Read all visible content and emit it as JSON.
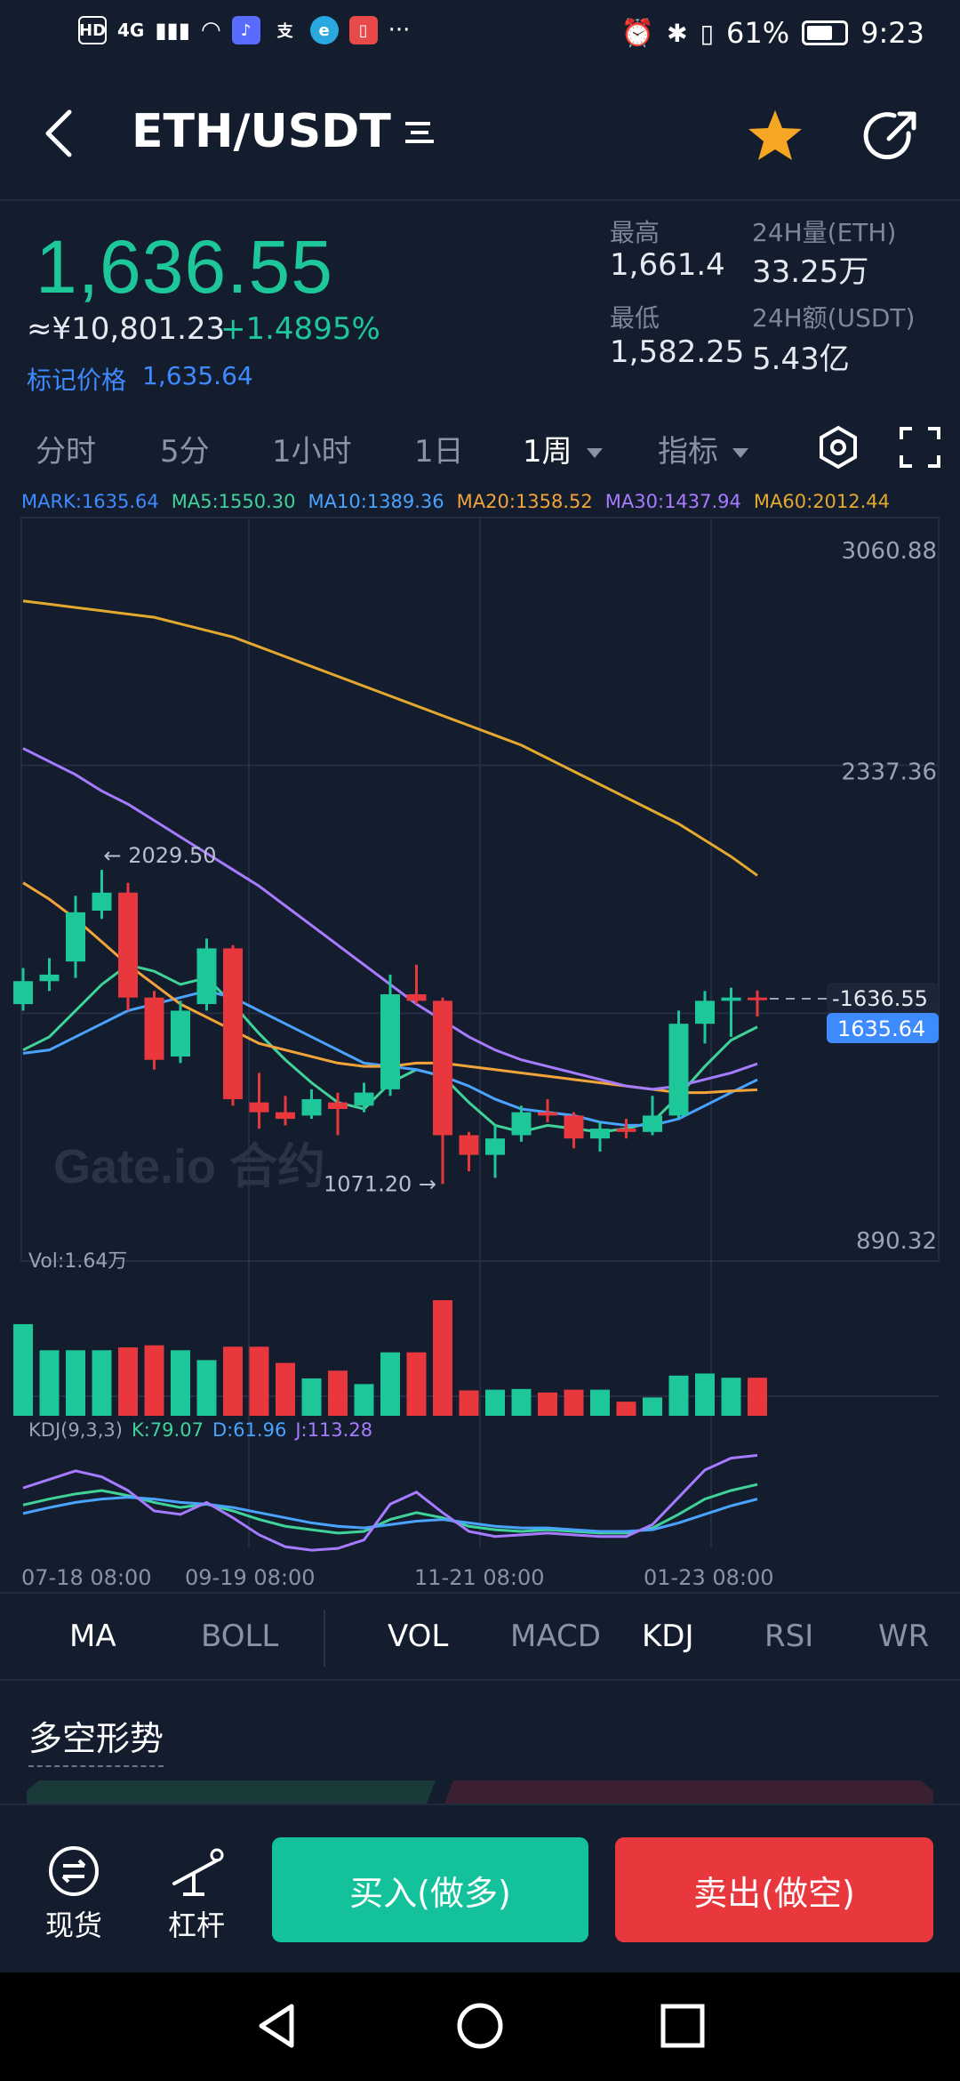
{
  "status_bar": {
    "network": "4G",
    "hd": "HD",
    "battery": "61%",
    "time": "9:23",
    "more": "···"
  },
  "header": {
    "pair": "ETH/USDT"
  },
  "ticker": {
    "last_price": "1,636.55",
    "cny_price": "≈¥10,801.23",
    "change": "+1.4895%",
    "mark_label": "标记价格",
    "mark_price": "1,635.64",
    "high_label": "最高",
    "high": "1,661.4",
    "low_label": "最低",
    "low": "1,582.25",
    "vol_label": "24H量(ETH)",
    "vol": "33.25万",
    "amount_label": "24H额(USDT)",
    "amount": "5.43亿"
  },
  "period_tabs": [
    "分时",
    "5分",
    "1小时",
    "1日",
    "1周",
    "指标"
  ],
  "ma_legend": [
    {
      "text": "MARK:1635.64",
      "color": "#3d8bff"
    },
    {
      "text": "MA5:1550.30",
      "color": "#3fd39a"
    },
    {
      "text": "MA10:1389.36",
      "color": "#4aa3ff"
    },
    {
      "text": "MA20:1358.52",
      "color": "#f2a33a"
    },
    {
      "text": "MA30:1437.94",
      "color": "#a77bff"
    },
    {
      "text": "MA60:2012.44",
      "color": "#e3a92e"
    }
  ],
  "chart_data": {
    "type": "candlestick",
    "y_axis_labels": [
      "3060.88",
      "2337.36",
      "890.32"
    ],
    "ylim": [
      890.32,
      3060.88
    ],
    "last_price_tag": "1636.55",
    "mark_price_tag": "1635.64",
    "high_annotation": "← 2029.50",
    "low_annotation": "1071.20 →",
    "candles": [
      {
        "o": 1620,
        "c": 1690,
        "h": 1730,
        "l": 1600
      },
      {
        "o": 1690,
        "c": 1710,
        "h": 1760,
        "l": 1660
      },
      {
        "o": 1750,
        "c": 1900,
        "h": 1950,
        "l": 1700
      },
      {
        "o": 1905,
        "c": 1960,
        "h": 2029.5,
        "l": 1880
      },
      {
        "o": 1960,
        "c": 1640,
        "h": 1990,
        "l": 1600
      },
      {
        "o": 1640,
        "c": 1450,
        "h": 1660,
        "l": 1420
      },
      {
        "o": 1460,
        "c": 1600,
        "h": 1630,
        "l": 1440
      },
      {
        "o": 1620,
        "c": 1790,
        "h": 1820,
        "l": 1600
      },
      {
        "o": 1790,
        "c": 1330,
        "h": 1800,
        "l": 1310
      },
      {
        "o": 1320,
        "c": 1290,
        "h": 1410,
        "l": 1240
      },
      {
        "o": 1290,
        "c": 1270,
        "h": 1340,
        "l": 1250
      },
      {
        "o": 1280,
        "c": 1330,
        "h": 1360,
        "l": 1270
      },
      {
        "o": 1320,
        "c": 1300,
        "h": 1350,
        "l": 1220
      },
      {
        "o": 1310,
        "c": 1350,
        "h": 1380,
        "l": 1290
      },
      {
        "o": 1360,
        "c": 1650,
        "h": 1710,
        "l": 1340
      },
      {
        "o": 1650,
        "c": 1630,
        "h": 1740,
        "l": 1620
      },
      {
        "o": 1630,
        "c": 1220,
        "h": 1640,
        "l": 1071.2
      },
      {
        "o": 1220,
        "c": 1160,
        "h": 1230,
        "l": 1110
      },
      {
        "o": 1160,
        "c": 1210,
        "h": 1250,
        "l": 1090
      },
      {
        "o": 1220,
        "c": 1290,
        "h": 1310,
        "l": 1200
      },
      {
        "o": 1290,
        "c": 1280,
        "h": 1330,
        "l": 1260
      },
      {
        "o": 1280,
        "c": 1210,
        "h": 1290,
        "l": 1180
      },
      {
        "o": 1210,
        "c": 1240,
        "h": 1260,
        "l": 1170
      },
      {
        "o": 1240,
        "c": 1230,
        "h": 1270,
        "l": 1210
      },
      {
        "o": 1230,
        "c": 1280,
        "h": 1340,
        "l": 1220
      },
      {
        "o": 1280,
        "c": 1560,
        "h": 1600,
        "l": 1270
      },
      {
        "o": 1560,
        "c": 1630,
        "h": 1660,
        "l": 1500
      },
      {
        "o": 1630,
        "c": 1640,
        "h": 1670,
        "l": 1520
      },
      {
        "o": 1640,
        "c": 1636.55,
        "h": 1661.4,
        "l": 1582.25
      }
    ],
    "ma_series": [
      {
        "key": "MA5",
        "color": "#3fd39a",
        "values": [
          1480,
          1520,
          1600,
          1680,
          1740,
          1720,
          1680,
          1700,
          1620,
          1530,
          1450,
          1380,
          1320,
          1300,
          1380,
          1420,
          1400,
          1320,
          1250,
          1230,
          1250,
          1240,
          1230,
          1240,
          1260,
          1340,
          1430,
          1510,
          1550.3
        ]
      },
      {
        "key": "MA10",
        "color": "#4aa3ff",
        "values": [
          1470,
          1480,
          1520,
          1560,
          1600,
          1620,
          1640,
          1660,
          1640,
          1600,
          1560,
          1520,
          1480,
          1440,
          1430,
          1420,
          1400,
          1370,
          1330,
          1300,
          1290,
          1280,
          1260,
          1250,
          1250,
          1270,
          1310,
          1350,
          1389.36
        ]
      },
      {
        "key": "MA20",
        "color": "#f2a33a",
        "values": [
          1990,
          1940,
          1880,
          1810,
          1740,
          1680,
          1620,
          1580,
          1540,
          1500,
          1480,
          1460,
          1440,
          1430,
          1430,
          1440,
          1440,
          1430,
          1420,
          1410,
          1400,
          1390,
          1380,
          1370,
          1360,
          1350,
          1350,
          1355,
          1358.52
        ]
      },
      {
        "key": "MA30",
        "color": "#a77bff",
        "values": [
          2400,
          2360,
          2320,
          2270,
          2230,
          2180,
          2130,
          2080,
          2030,
          1980,
          1920,
          1860,
          1800,
          1740,
          1680,
          1620,
          1570,
          1520,
          1480,
          1450,
          1430,
          1410,
          1390,
          1370,
          1360,
          1370,
          1390,
          1410,
          1437.94
        ]
      },
      {
        "key": "MA60",
        "color": "#e3a92e",
        "values": [
          2850,
          2840,
          2830,
          2820,
          2810,
          2800,
          2780,
          2760,
          2740,
          2710,
          2680,
          2650,
          2620,
          2590,
          2560,
          2530,
          2500,
          2470,
          2440,
          2410,
          2370,
          2330,
          2290,
          2250,
          2210,
          2170,
          2120,
          2070,
          2012.44
        ]
      }
    ],
    "volume_label": "Vol:1.64万",
    "volumes": [
      1.3,
      0.93,
      0.93,
      0.93,
      0.97,
      1.0,
      0.93,
      0.79,
      0.98,
      0.98,
      0.75,
      0.53,
      0.64,
      0.45,
      0.9,
      0.9,
      1.64,
      0.36,
      0.37,
      0.38,
      0.33,
      0.37,
      0.37,
      0.2,
      0.26,
      0.57,
      0.6,
      0.54,
      0.54
    ],
    "kdj_label": "KDJ(9,3,3)",
    "kdj_values": {
      "K": "K:79.07",
      "D": "D:61.96",
      "J": "J:113.28"
    },
    "kdj_series": [
      {
        "key": "K",
        "color": "#3fd39a",
        "values": [
          55,
          62,
          68,
          72,
          66,
          58,
          52,
          56,
          48,
          38,
          30,
          26,
          22,
          24,
          38,
          46,
          40,
          30,
          26,
          24,
          26,
          24,
          22,
          22,
          28,
          44,
          62,
          72,
          79.07
        ]
      },
      {
        "key": "D",
        "color": "#4aa3ff",
        "values": [
          45,
          52,
          58,
          62,
          64,
          62,
          58,
          56,
          52,
          46,
          40,
          34,
          30,
          28,
          32,
          36,
          38,
          34,
          30,
          28,
          28,
          26,
          24,
          24,
          26,
          34,
          44,
          54,
          61.96
        ]
      },
      {
        "key": "J",
        "color": "#a77bff",
        "values": [
          75,
          85,
          95,
          88,
          72,
          48,
          44,
          58,
          40,
          20,
          6,
          2,
          4,
          14,
          56,
          70,
          46,
          24,
          18,
          20,
          22,
          20,
          18,
          18,
          32,
          64,
          96,
          110,
          113.28
        ]
      }
    ],
    "x_labels": [
      "07-18 08:00",
      "09-19 08:00",
      "11-21 08:00",
      "01-23 08:00"
    ],
    "watermark": "Gate.io 合约"
  },
  "indicator_tabs": [
    "MA",
    "BOLL",
    "VOL",
    "MACD",
    "KDJ",
    "RSI",
    "WR"
  ],
  "section": {
    "title": "多空形势"
  },
  "bottom_bar": {
    "spot_label": "现货",
    "margin_label": "杠杆",
    "buy_label": "买入(做多)",
    "sell_label": "卖出(做空)"
  },
  "colors": {
    "up": "#1dc79a",
    "down": "#e8383d",
    "bg": "#141d2e",
    "accent_blue": "#3d8bff"
  }
}
